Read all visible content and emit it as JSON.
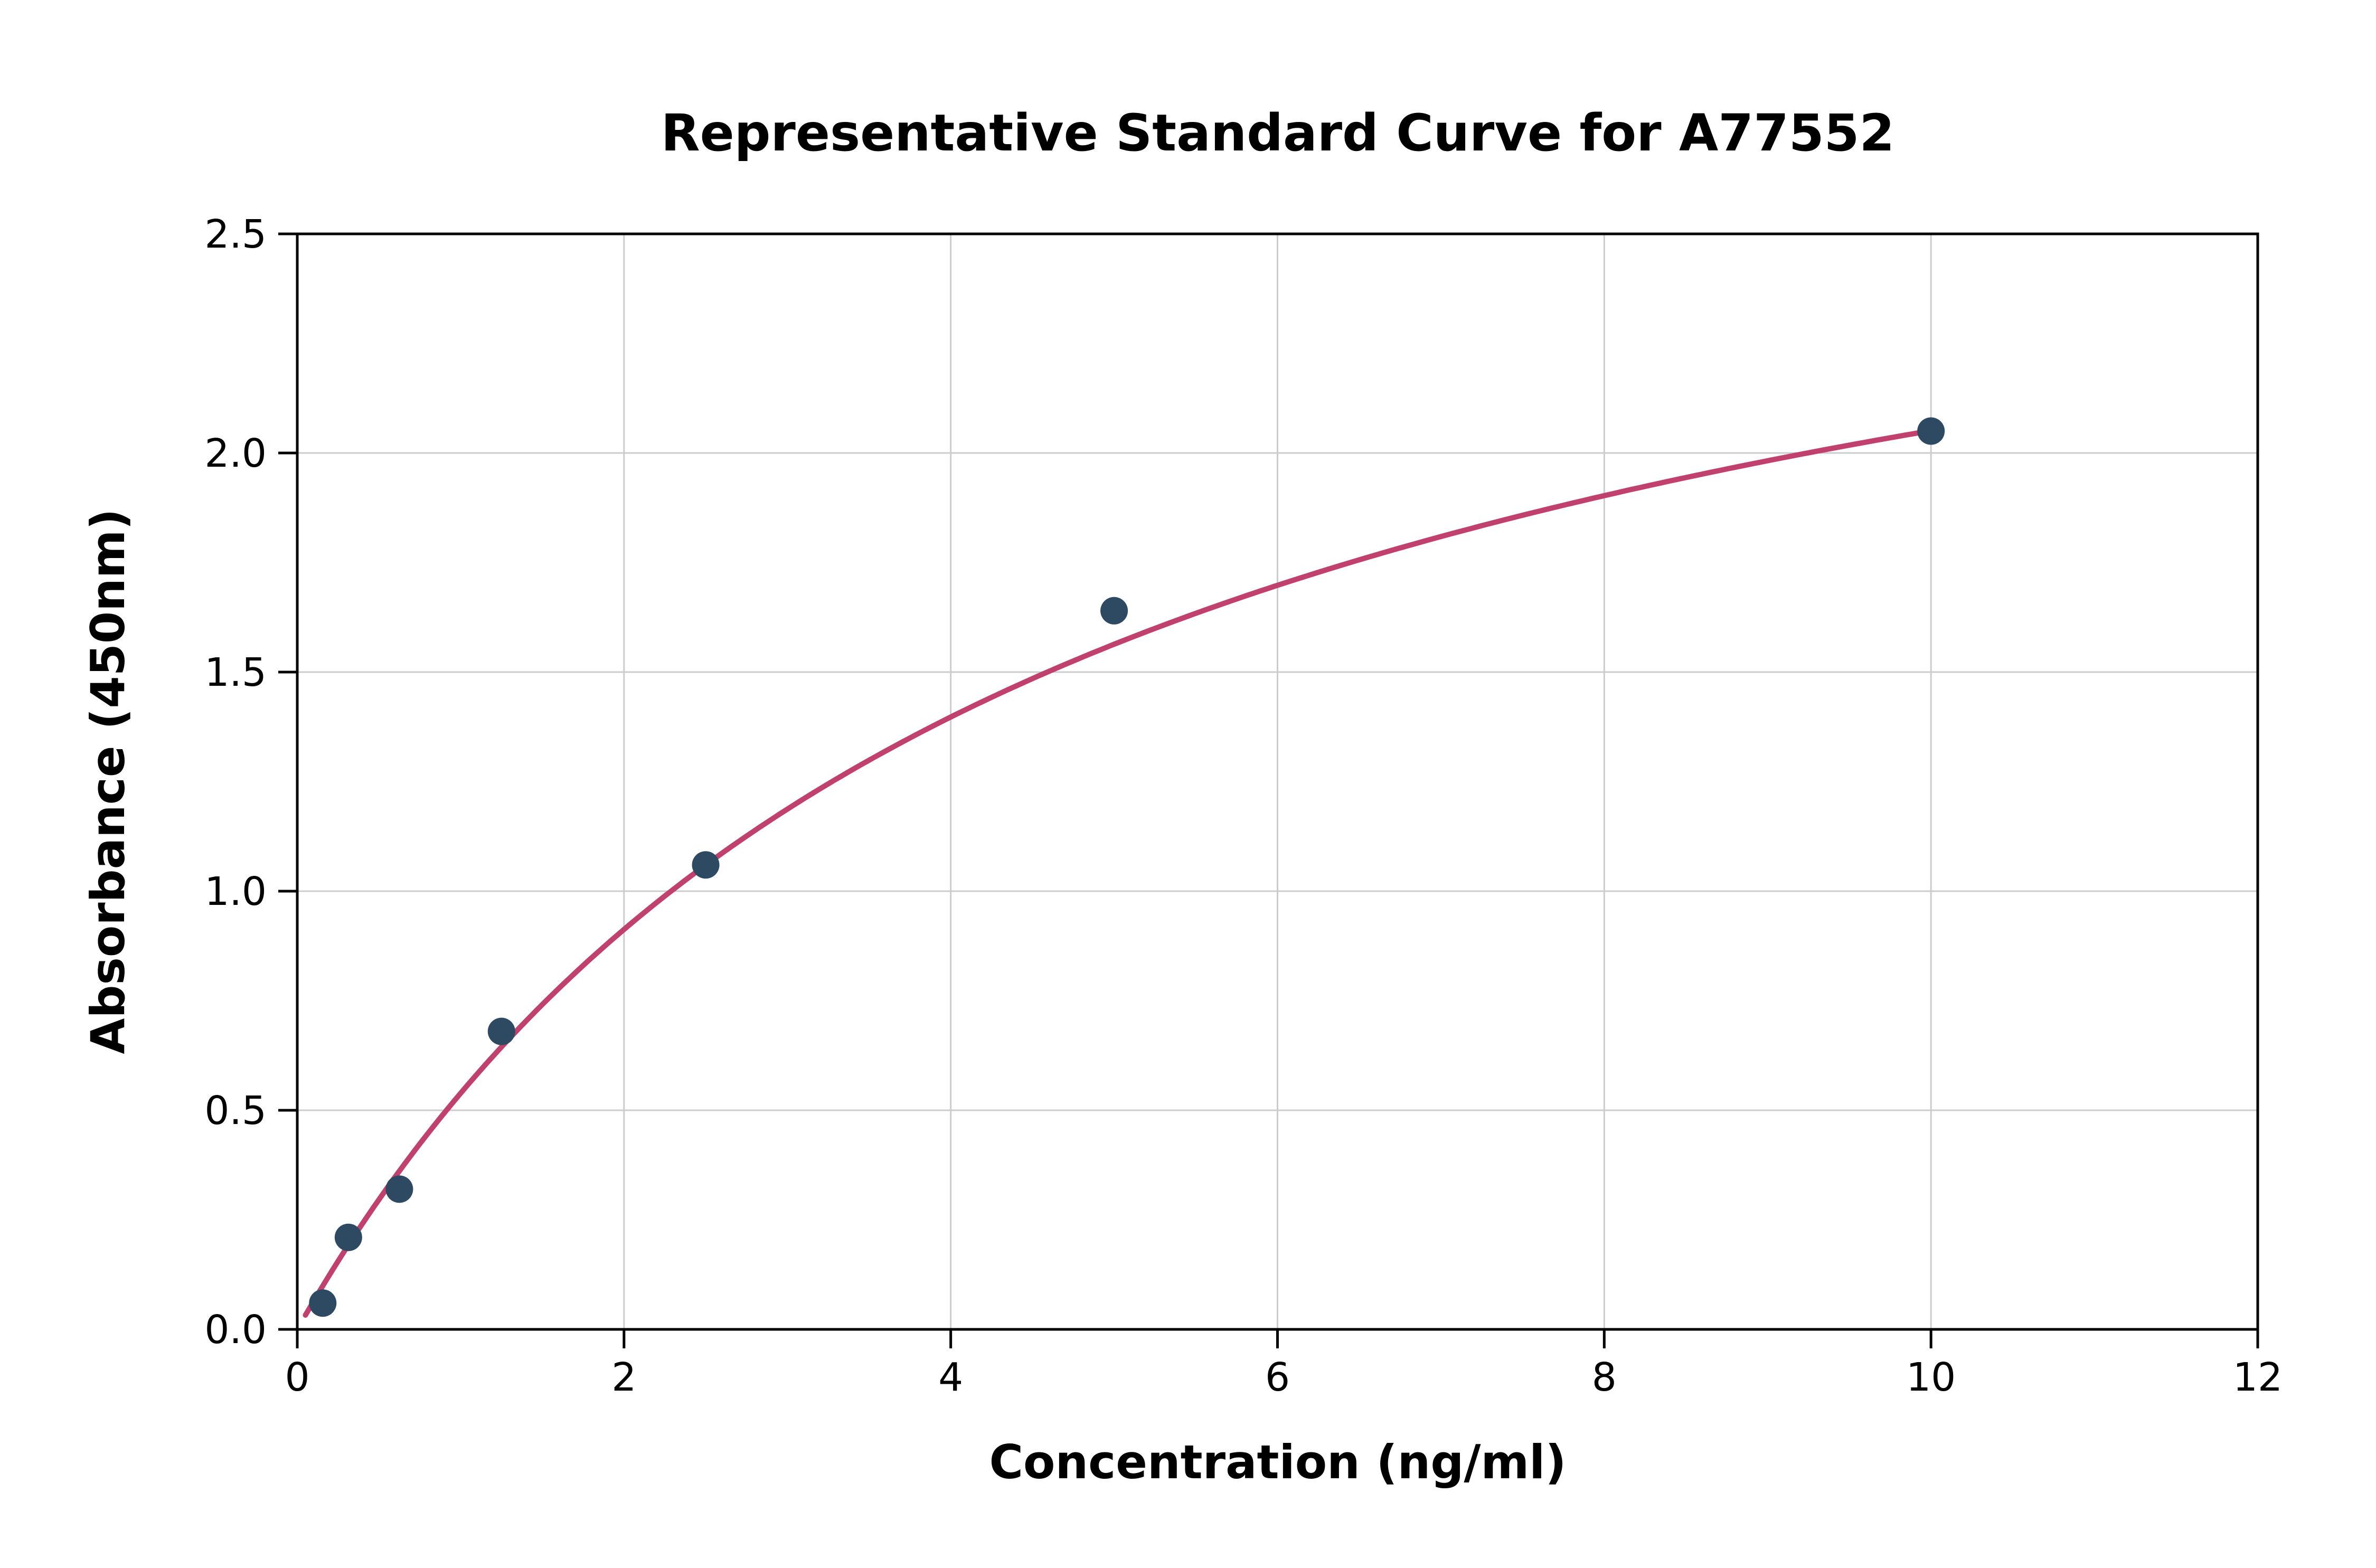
{
  "chart_data": {
    "type": "scatter",
    "title": "Representative Standard Curve for A77552",
    "xlabel": "Concentration (ng/ml)",
    "ylabel": "Absorbance (450nm)",
    "xlim": [
      0,
      12
    ],
    "ylim": [
      0,
      2.5
    ],
    "xticks": {
      "values": [
        0,
        2,
        4,
        6,
        8,
        10,
        12
      ],
      "labels": [
        "0",
        "2",
        "4",
        "6",
        "8",
        "10",
        "12"
      ]
    },
    "yticks": {
      "values": [
        0,
        0.5,
        1.0,
        1.5,
        2.0,
        2.5
      ],
      "labels": [
        "0.0",
        "0.5",
        "1.0",
        "1.5",
        "2.0",
        "2.5"
      ]
    },
    "grid": true,
    "legend": "none",
    "points": [
      {
        "x": 0.156,
        "y": 0.06
      },
      {
        "x": 0.313,
        "y": 0.21
      },
      {
        "x": 0.625,
        "y": 0.32
      },
      {
        "x": 1.25,
        "y": 0.68
      },
      {
        "x": 2.5,
        "y": 1.06
      },
      {
        "x": 5.0,
        "y": 1.64
      },
      {
        "x": 10.0,
        "y": 2.05
      }
    ],
    "fit_curve": {
      "model": "saturation y = a*x/(b+x)",
      "a": 2.98,
      "b": 4.53,
      "x_start": 0.05,
      "x_end": 10.0
    },
    "colors": {
      "curve": "#c0416d",
      "points": "#2e4a63",
      "grid": "#cccccc",
      "axis": "#000000",
      "background": "#ffffff"
    }
  }
}
